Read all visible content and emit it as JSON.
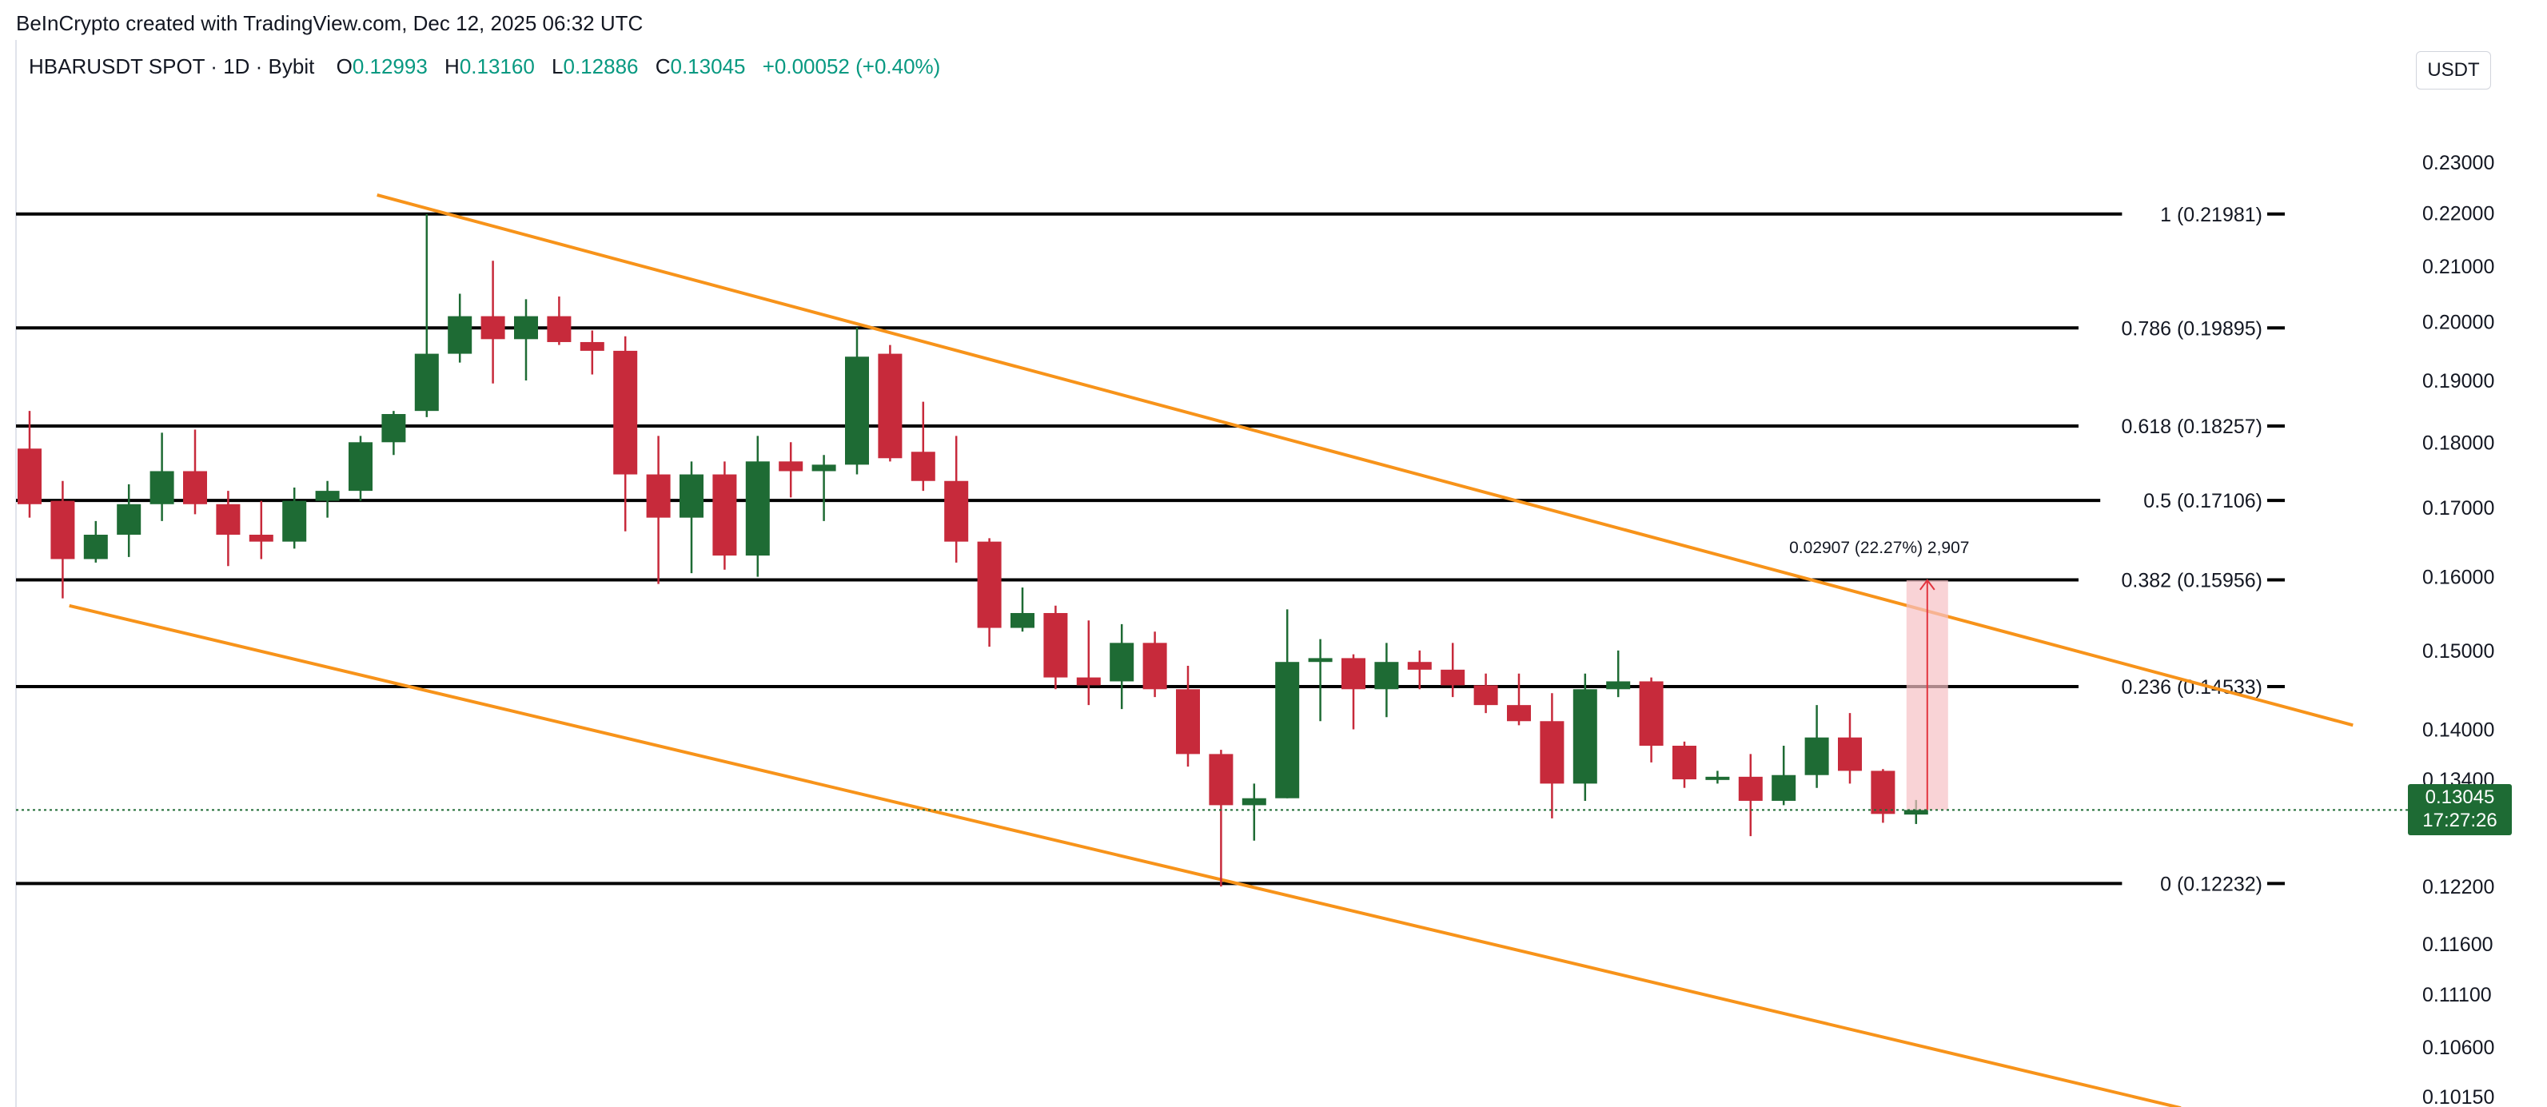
{
  "attribution": "BeInCrypto created with TradingView.com, Dec 12, 2025 06:32 UTC",
  "legend": {
    "symbol": "HBARUSDT SPOT · 1D · Bybit",
    "open_label": "O",
    "open": "0.12993",
    "high_label": "H",
    "high": "0.13160",
    "low_label": "L",
    "low": "0.12886",
    "close_label": "C",
    "close": "0.13045",
    "change": "+0.00052 (+0.40%)"
  },
  "currency": "USDT",
  "last_price": {
    "price": "0.13045",
    "countdown": "17:27:26"
  },
  "colors": {
    "up": "#1e6b34",
    "down": "#c72a3b",
    "channel": "#f7931a",
    "fib": "#000000",
    "measure_fill": "#f6c1c4",
    "measure_line": "#e2343f",
    "legend_value": "#089981"
  },
  "chart_data": {
    "type": "candlestick",
    "title": "",
    "xlabel": "",
    "ylabel": "",
    "y_tick_labels": [
      "0.23000",
      "0.22000",
      "0.21000",
      "0.20000",
      "0.19000",
      "0.18000",
      "0.17000",
      "0.16000",
      "0.15000",
      "0.14000",
      "0.13400",
      "0.12200",
      "0.11600",
      "0.11100",
      "0.10600",
      "0.10150"
    ],
    "y_ticks": [
      0.23,
      0.22,
      0.21,
      0.2,
      0.19,
      0.18,
      0.17,
      0.16,
      0.15,
      0.14,
      0.134,
      0.122,
      0.116,
      0.111,
      0.106,
      0.1015
    ],
    "ylim": [
      0.1008,
      0.2345
    ],
    "y_scale": "log",
    "grid": false,
    "fib_levels": [
      {
        "ratio": "1",
        "price": 0.21981,
        "label": "1 (0.21981)"
      },
      {
        "ratio": "0.786",
        "price": 0.19895,
        "label": "0.786 (0.19895)"
      },
      {
        "ratio": "0.618",
        "price": 0.18257,
        "label": "0.618 (0.18257)"
      },
      {
        "ratio": "0.5",
        "price": 0.17106,
        "label": "0.5 (0.17106)"
      },
      {
        "ratio": "0.382",
        "price": 0.15956,
        "label": "0.382 (0.15956)"
      },
      {
        "ratio": "0.236",
        "price": 0.14533,
        "label": "0.236 (0.14533)"
      },
      {
        "ratio": "0",
        "price": 0.12232,
        "label": "0 (0.12232)"
      }
    ],
    "channel_upper": [
      {
        "bar": 10.5,
        "price": 0.2235
      },
      {
        "bar": 70.2,
        "price": 0.1405
      }
    ],
    "channel_lower": [
      {
        "bar": 1.2,
        "price": 0.156
      },
      {
        "bar": 65.0,
        "price": 0.1005
      }
    ],
    "measure": {
      "label": "0.02907 (22.27%) 2,907",
      "start_bar": 57,
      "from_price": 0.13045,
      "to_price": 0.15952
    },
    "current_price": 0.13045,
    "candles": [
      {
        "o": 0.179,
        "h": 0.185,
        "l": 0.1685,
        "c": 0.1705
      },
      {
        "o": 0.171,
        "h": 0.174,
        "l": 0.157,
        "c": 0.1625
      },
      {
        "o": 0.1625,
        "h": 0.168,
        "l": 0.162,
        "c": 0.166
      },
      {
        "o": 0.166,
        "h": 0.1735,
        "l": 0.1628,
        "c": 0.1705
      },
      {
        "o": 0.1705,
        "h": 0.1815,
        "l": 0.168,
        "c": 0.1755
      },
      {
        "o": 0.1755,
        "h": 0.182,
        "l": 0.169,
        "c": 0.1705
      },
      {
        "o": 0.1705,
        "h": 0.1725,
        "l": 0.1615,
        "c": 0.166
      },
      {
        "o": 0.166,
        "h": 0.171,
        "l": 0.1625,
        "c": 0.165
      },
      {
        "o": 0.165,
        "h": 0.173,
        "l": 0.164,
        "c": 0.171
      },
      {
        "o": 0.171,
        "h": 0.174,
        "l": 0.1685,
        "c": 0.1725
      },
      {
        "o": 0.1725,
        "h": 0.181,
        "l": 0.171,
        "c": 0.18
      },
      {
        "o": 0.18,
        "h": 0.185,
        "l": 0.178,
        "c": 0.1845
      },
      {
        "o": 0.185,
        "h": 0.2198,
        "l": 0.184,
        "c": 0.1945
      },
      {
        "o": 0.1945,
        "h": 0.205,
        "l": 0.193,
        "c": 0.201
      },
      {
        "o": 0.201,
        "h": 0.211,
        "l": 0.1895,
        "c": 0.197
      },
      {
        "o": 0.197,
        "h": 0.204,
        "l": 0.19,
        "c": 0.201
      },
      {
        "o": 0.201,
        "h": 0.2045,
        "l": 0.196,
        "c": 0.1965
      },
      {
        "o": 0.1965,
        "h": 0.1985,
        "l": 0.191,
        "c": 0.195
      },
      {
        "o": 0.195,
        "h": 0.1975,
        "l": 0.1665,
        "c": 0.175
      },
      {
        "o": 0.175,
        "h": 0.181,
        "l": 0.159,
        "c": 0.1685
      },
      {
        "o": 0.1685,
        "h": 0.177,
        "l": 0.1605,
        "c": 0.175
      },
      {
        "o": 0.175,
        "h": 0.177,
        "l": 0.161,
        "c": 0.163
      },
      {
        "o": 0.163,
        "h": 0.181,
        "l": 0.16,
        "c": 0.177
      },
      {
        "o": 0.177,
        "h": 0.18,
        "l": 0.1715,
        "c": 0.1755
      },
      {
        "o": 0.1755,
        "h": 0.178,
        "l": 0.168,
        "c": 0.1765
      },
      {
        "o": 0.1765,
        "h": 0.199,
        "l": 0.175,
        "c": 0.194
      },
      {
        "o": 0.1945,
        "h": 0.196,
        "l": 0.177,
        "c": 0.1775
      },
      {
        "o": 0.1785,
        "h": 0.1865,
        "l": 0.1725,
        "c": 0.174
      },
      {
        "o": 0.174,
        "h": 0.181,
        "l": 0.162,
        "c": 0.165
      },
      {
        "o": 0.165,
        "h": 0.1655,
        "l": 0.1505,
        "c": 0.153
      },
      {
        "o": 0.153,
        "h": 0.1585,
        "l": 0.1525,
        "c": 0.155
      },
      {
        "o": 0.155,
        "h": 0.156,
        "l": 0.145,
        "c": 0.1465
      },
      {
        "o": 0.1465,
        "h": 0.154,
        "l": 0.143,
        "c": 0.1455
      },
      {
        "o": 0.146,
        "h": 0.1535,
        "l": 0.1425,
        "c": 0.151
      },
      {
        "o": 0.151,
        "h": 0.1525,
        "l": 0.144,
        "c": 0.145
      },
      {
        "o": 0.145,
        "h": 0.148,
        "l": 0.1355,
        "c": 0.137
      },
      {
        "o": 0.137,
        "h": 0.1375,
        "l": 0.122,
        "c": 0.131
      },
      {
        "o": 0.131,
        "h": 0.1335,
        "l": 0.127,
        "c": 0.1318
      },
      {
        "o": 0.1318,
        "h": 0.1555,
        "l": 0.1318,
        "c": 0.1485
      },
      {
        "o": 0.1485,
        "h": 0.1515,
        "l": 0.141,
        "c": 0.149
      },
      {
        "o": 0.149,
        "h": 0.1495,
        "l": 0.14,
        "c": 0.145
      },
      {
        "o": 0.145,
        "h": 0.151,
        "l": 0.1415,
        "c": 0.1485
      },
      {
        "o": 0.1485,
        "h": 0.15,
        "l": 0.145,
        "c": 0.1475
      },
      {
        "o": 0.1475,
        "h": 0.151,
        "l": 0.144,
        "c": 0.1455
      },
      {
        "o": 0.1455,
        "h": 0.147,
        "l": 0.142,
        "c": 0.143
      },
      {
        "o": 0.143,
        "h": 0.147,
        "l": 0.1405,
        "c": 0.141
      },
      {
        "o": 0.141,
        "h": 0.1445,
        "l": 0.1295,
        "c": 0.1335
      },
      {
        "o": 0.1335,
        "h": 0.147,
        "l": 0.1315,
        "c": 0.145
      },
      {
        "o": 0.145,
        "h": 0.15,
        "l": 0.144,
        "c": 0.146
      },
      {
        "o": 0.146,
        "h": 0.1465,
        "l": 0.136,
        "c": 0.138
      },
      {
        "o": 0.138,
        "h": 0.1385,
        "l": 0.133,
        "c": 0.134
      },
      {
        "o": 0.134,
        "h": 0.135,
        "l": 0.1335,
        "c": 0.1343
      },
      {
        "o": 0.1343,
        "h": 0.137,
        "l": 0.1275,
        "c": 0.1315
      },
      {
        "o": 0.1315,
        "h": 0.138,
        "l": 0.131,
        "c": 0.1345
      },
      {
        "o": 0.1345,
        "h": 0.143,
        "l": 0.133,
        "c": 0.139
      },
      {
        "o": 0.139,
        "h": 0.142,
        "l": 0.1335,
        "c": 0.135
      },
      {
        "o": 0.135,
        "h": 0.1352,
        "l": 0.129,
        "c": 0.13
      },
      {
        "o": 0.12993,
        "h": 0.1316,
        "l": 0.12886,
        "c": 0.13045
      }
    ]
  }
}
